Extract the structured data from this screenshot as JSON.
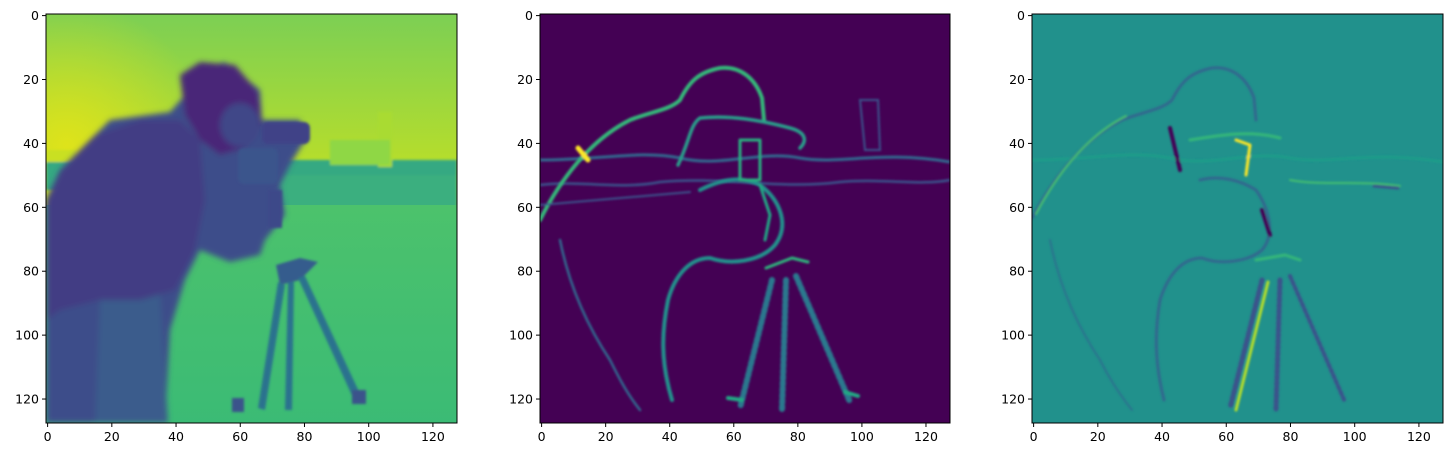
{
  "figure": {
    "panel_count": 3,
    "colormap": "viridis",
    "colors": {
      "viridis_dark": "#440154",
      "viridis_blue": "#3b528b",
      "viridis_teal": "#21918c",
      "viridis_green": "#5ec962",
      "viridis_yellow": "#fde725"
    }
  },
  "chart_data": [
    {
      "type": "heatmap",
      "description_of_content": "blurred grayscale photo (cameraman) rendered with viridis colormap",
      "x_ticks": [
        "0",
        "20",
        "40",
        "60",
        "80",
        "100",
        "120"
      ],
      "y_ticks": [
        "0",
        "20",
        "40",
        "60",
        "80",
        "100",
        "120"
      ],
      "xlim": [
        0,
        127
      ],
      "ylim": [
        127,
        0
      ],
      "image_size": [
        128,
        128
      ]
    },
    {
      "type": "heatmap",
      "description_of_content": "edge magnitude of the image, viridis colormap",
      "x_ticks": [
        "0",
        "20",
        "40",
        "60",
        "80",
        "100",
        "120"
      ],
      "y_ticks": [
        "0",
        "20",
        "40",
        "60",
        "80",
        "100",
        "120"
      ],
      "xlim": [
        0,
        127
      ],
      "ylim": [
        127,
        0
      ],
      "image_size": [
        128,
        128
      ]
    },
    {
      "type": "heatmap",
      "description_of_content": "signed edge response of the image, viridis colormap",
      "x_ticks": [
        "0",
        "20",
        "40",
        "60",
        "80",
        "100",
        "120"
      ],
      "y_ticks": [
        "0",
        "20",
        "40",
        "60",
        "80",
        "100",
        "120"
      ],
      "xlim": [
        0,
        127
      ],
      "ylim": [
        127,
        0
      ],
      "image_size": [
        128,
        128
      ]
    }
  ]
}
